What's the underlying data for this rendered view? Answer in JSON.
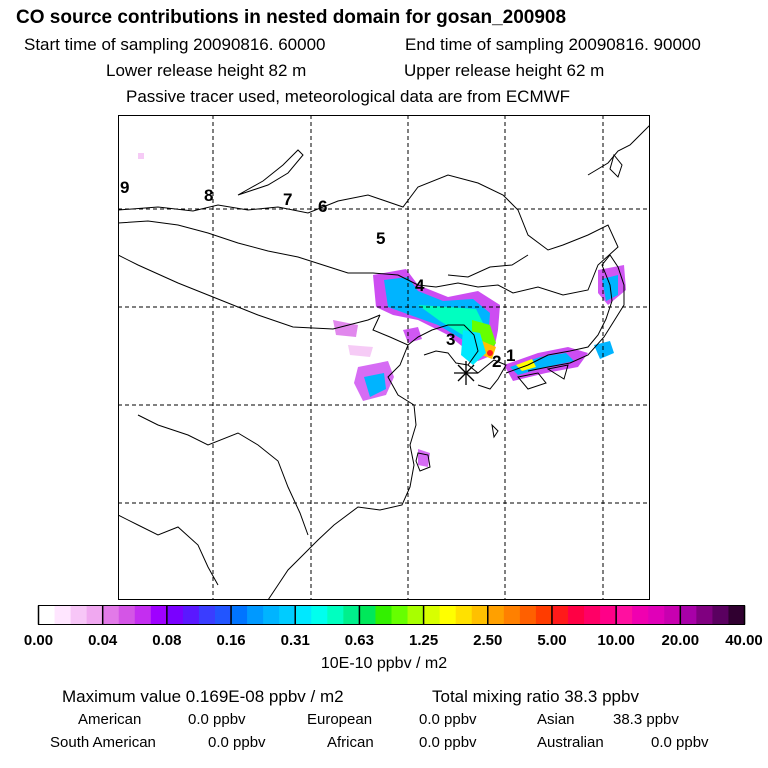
{
  "header": {
    "title": "CO  source contributions in nested domain for gosan_200908",
    "start_label": "Start time of sampling 20090816. 60000",
    "end_label": "End time of sampling 20090816. 90000",
    "lower_label": "Lower release height   82 m",
    "upper_label": "Upper release height   62 m",
    "tracer_note": "Passive tracer used, meteorological data are from ECMWF"
  },
  "map": {
    "trajectory_labels": [
      "9",
      "8",
      "7",
      "6",
      "5",
      "4",
      "3",
      "2",
      "1"
    ],
    "receptor": "gosan"
  },
  "legend": {
    "tick_labels": [
      "0.00",
      "0.04",
      "0.08",
      "0.16",
      "0.31",
      "0.63",
      "1.25",
      "2.50",
      "5.00",
      "10.00",
      "20.00",
      "40.00"
    ],
    "colors": [
      "#ffffff",
      "#ffe6ff",
      "#f7c6f7",
      "#f0a8f0",
      "#e27ae8",
      "#d455e6",
      "#c42ef0",
      "#9f00ff",
      "#7a00ff",
      "#5a18ff",
      "#3a3dff",
      "#2255ff",
      "#0074ff",
      "#0099ff",
      "#00b4ff",
      "#00ccff",
      "#00e8ff",
      "#00ffee",
      "#00ffc0",
      "#00f08c",
      "#00e85a",
      "#33f000",
      "#66ff00",
      "#a8ff00",
      "#d8ff00",
      "#ffff00",
      "#ffe100",
      "#ffc000",
      "#ffa000",
      "#ff8000",
      "#ff6000",
      "#ff3c00",
      "#ff1a1a",
      "#ff0044",
      "#ff0066",
      "#ff0088",
      "#ff10a0",
      "#f000b0",
      "#e000b8",
      "#c800b0",
      "#a800a8",
      "#800080",
      "#5a0060",
      "#300030"
    ],
    "units": "10E-10 ppbv / m2"
  },
  "stats": {
    "max_value": "Maximum value  0.169E-08 ppbv / m2",
    "total_mixing": "Total mixing ratio       38.3 ppbv"
  },
  "contributions": [
    {
      "name": "American",
      "value": "0.0 ppbv"
    },
    {
      "name": "European",
      "value": "0.0 ppbv"
    },
    {
      "name": "Asian",
      "value": "38.3 ppbv"
    },
    {
      "name": "South American",
      "value": "0.0 ppbv"
    },
    {
      "name": "African",
      "value": "0.0 ppbv"
    },
    {
      "name": "Australian",
      "value": "0.0 ppbv"
    }
  ]
}
